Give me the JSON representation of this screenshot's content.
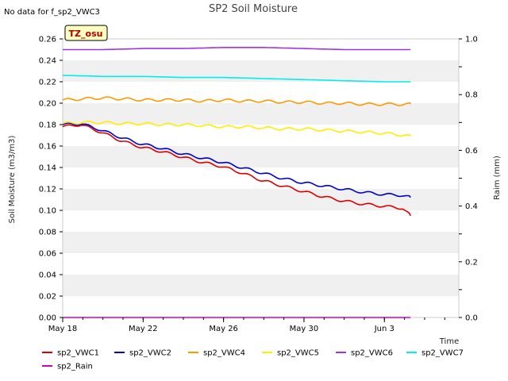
{
  "note": "No data for f_sp2_VWC3",
  "tag_label": "TZ_osu",
  "chart_data": {
    "type": "line",
    "title": "SP2 Soil Moisture",
    "xlabel": "Time",
    "ylabel": "Soil Moisture (m3/m3)",
    "y2label": "Raim (mm)",
    "x_start": "May 18",
    "x_range_days": [
      0,
      19.7
    ],
    "ylim": [
      0,
      0.26
    ],
    "y2lim": [
      0,
      1.0
    ],
    "xticks": [
      {
        "label": "May 18",
        "day": 0
      },
      {
        "label": "May 22",
        "day": 4
      },
      {
        "label": "May 26",
        "day": 8
      },
      {
        "label": "May 30",
        "day": 12
      },
      {
        "label": "Jun 3",
        "day": 16
      }
    ],
    "yticks": [
      "0.00",
      "0.02",
      "0.04",
      "0.06",
      "0.08",
      "0.10",
      "0.12",
      "0.14",
      "0.16",
      "0.18",
      "0.20",
      "0.22",
      "0.24",
      "0.26"
    ],
    "y2ticks": [
      "0.0",
      "0.2",
      "0.4",
      "0.6",
      "0.8",
      "1.0"
    ],
    "grid": "alternating horizontal bands",
    "legend_position": "bottom",
    "series": [
      {
        "name": "sp2_VWC1",
        "color": "#dd0000",
        "axis": "left",
        "x_days": [
          0,
          0.9,
          1.9,
          2.9,
          3.9,
          4.9,
          5.9,
          6.9,
          7.9,
          8.9,
          9.9,
          10.9,
          11.9,
          12.9,
          13.9,
          14.9,
          15.9,
          16.9,
          17.3
        ],
        "values": [
          0.178,
          0.18,
          0.173,
          0.165,
          0.159,
          0.155,
          0.15,
          0.145,
          0.141,
          0.135,
          0.128,
          0.123,
          0.118,
          0.113,
          0.109,
          0.106,
          0.104,
          0.102,
          0.095
        ]
      },
      {
        "name": "sp2_VWC2",
        "color": "#0000cc",
        "axis": "left",
        "x_days": [
          0,
          0.9,
          1.9,
          2.9,
          3.9,
          4.9,
          5.9,
          6.9,
          7.9,
          8.9,
          9.9,
          10.9,
          11.9,
          12.9,
          13.9,
          14.9,
          15.9,
          16.9,
          17.3
        ],
        "values": [
          0.18,
          0.181,
          0.175,
          0.168,
          0.162,
          0.158,
          0.153,
          0.149,
          0.145,
          0.14,
          0.135,
          0.13,
          0.126,
          0.123,
          0.12,
          0.117,
          0.115,
          0.114,
          0.112
        ]
      },
      {
        "name": "sp2_VWC4",
        "color": "#ff9900",
        "axis": "left",
        "x_days": [
          0,
          1,
          2,
          3,
          4,
          5,
          6,
          7,
          8,
          9,
          10,
          11,
          12,
          13,
          14,
          15,
          16,
          17,
          17.3
        ],
        "values": [
          0.203,
          0.204,
          0.205,
          0.204,
          0.203,
          0.203,
          0.203,
          0.202,
          0.203,
          0.202,
          0.202,
          0.201,
          0.201,
          0.2,
          0.2,
          0.199,
          0.199,
          0.199,
          0.199
        ]
      },
      {
        "name": "sp2_VWC5",
        "color": "#ffee00",
        "axis": "left",
        "x_days": [
          0,
          1,
          2,
          3,
          4,
          5,
          6,
          7,
          8,
          9,
          10,
          11,
          12,
          13,
          14,
          15,
          16,
          17,
          17.3
        ],
        "values": [
          0.181,
          0.182,
          0.182,
          0.181,
          0.181,
          0.18,
          0.18,
          0.179,
          0.178,
          0.178,
          0.177,
          0.176,
          0.176,
          0.175,
          0.174,
          0.173,
          0.172,
          0.17,
          0.169
        ]
      },
      {
        "name": "sp2_VWC6",
        "color": "#9933ee",
        "axis": "left",
        "x_days": [
          0,
          2,
          4,
          6,
          8,
          10,
          12,
          14,
          16,
          17.3
        ],
        "values": [
          0.25,
          0.25,
          0.251,
          0.251,
          0.252,
          0.252,
          0.251,
          0.25,
          0.25,
          0.25
        ]
      },
      {
        "name": "sp2_VWC7",
        "color": "#00eeee",
        "axis": "left",
        "x_days": [
          0,
          2,
          4,
          6,
          8,
          10,
          12,
          14,
          16,
          17.3
        ],
        "values": [
          0.226,
          0.225,
          0.225,
          0.224,
          0.224,
          0.223,
          0.222,
          0.221,
          0.22,
          0.22
        ]
      },
      {
        "name": "sp2_Rain",
        "color": "#cc00cc",
        "axis": "right",
        "x_days": [
          0,
          17.3
        ],
        "values": [
          0.0,
          0.0
        ]
      }
    ]
  }
}
